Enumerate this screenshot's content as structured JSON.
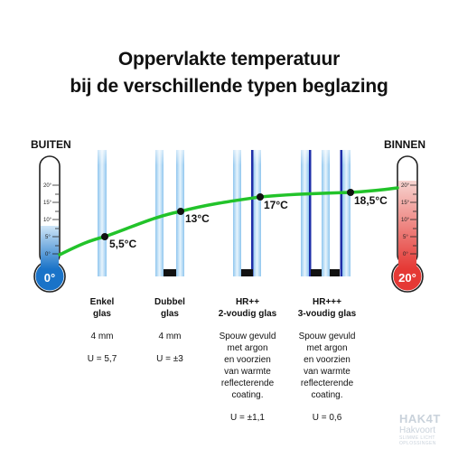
{
  "title": {
    "line1": "Oppervlakte temperatuur",
    "line2": "bij de verschillende typen beglazing"
  },
  "labels": {
    "outside": "BUITEN",
    "inside": "BINNEN"
  },
  "thermometers": {
    "scale": [
      "20°",
      "15°",
      "10°",
      "5°",
      "0°"
    ],
    "outside_value": "0°",
    "inside_value": "20°",
    "outside_color": "#1a73c8",
    "inside_color": "#e53935"
  },
  "line_color": "#22c32a",
  "points": [
    {
      "label": "5,5°C"
    },
    {
      "label": "13°C"
    },
    {
      "label": "17°C"
    },
    {
      "label": "18,5°C"
    }
  ],
  "glazing": [
    {
      "name_line1": "Enkel",
      "name_line2": "glas",
      "thickness": "4 mm",
      "description": [],
      "u_value": "U = 5,7"
    },
    {
      "name_line1": "Dubbel",
      "name_line2": "glas",
      "thickness": "4 mm",
      "description": [],
      "u_value": "U = ±3"
    },
    {
      "name_line1": "HR++",
      "name_line2": "2-voudig glas",
      "thickness": "",
      "description": [
        "Spouw gevuld",
        "met argon",
        "en voorzien",
        "van warmte",
        "reflecterende",
        "coating."
      ],
      "u_value": "U = ±1,1"
    },
    {
      "name_line1": "HR+++",
      "name_line2": "3-voudig glas",
      "thickness": "",
      "description": [
        "Spouw gevuld",
        "met argon",
        "en voorzien",
        "van warmte",
        "reflecterende",
        "coating."
      ],
      "u_value": "U = 0,6"
    }
  ],
  "logo": {
    "name": "HAK4T",
    "sub": "Hakvoort",
    "tagline1": "SLIMME LICHT",
    "tagline2": "OPLOSSINGEN"
  }
}
